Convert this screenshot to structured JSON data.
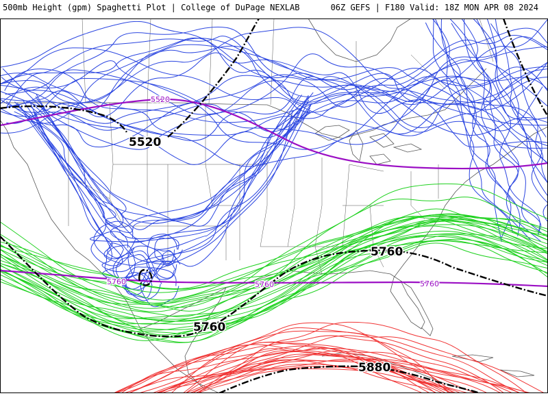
{
  "header": {
    "left": "500mb Height (gpm) Spaghetti Plot | College of DuPage NEXLAB",
    "right": "06Z GEFS | F180 Valid: 18Z MON APR 08 2024"
  },
  "contour_labels": [
    {
      "value": "5520",
      "role": "ensemble-mean"
    },
    {
      "value": "5520",
      "role": "climatology"
    },
    {
      "value": "5760",
      "role": "ensemble-mean"
    },
    {
      "value": "5760",
      "role": "ensemble-mean"
    },
    {
      "value": "5760",
      "role": "climatology"
    },
    {
      "value": "5760",
      "role": "climatology"
    },
    {
      "value": "5760",
      "role": "climatology"
    },
    {
      "value": "5880",
      "role": "ensemble-mean"
    }
  ],
  "colors": {
    "contour_5520": "#2a45e0",
    "contour_5760": "#1fd11f",
    "contour_5880": "#f03434",
    "ensemble_mean": "#000000",
    "climatology": "#9b0fc4",
    "map_lines": "#555555"
  }
}
